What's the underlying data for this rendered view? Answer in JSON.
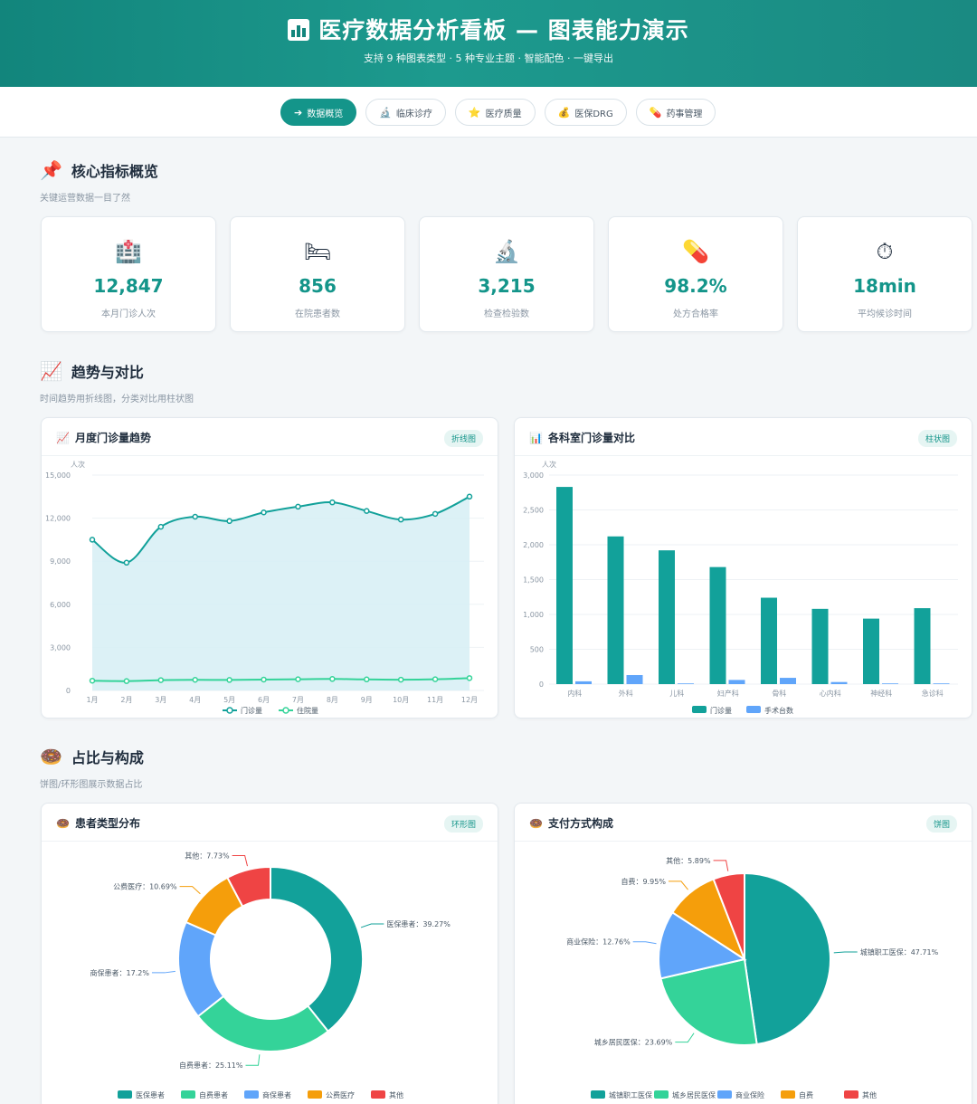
{
  "header": {
    "title": "医疗数据分析看板 — 图表能力演示",
    "subtitle": "支持 9 种图表类型 · 5 种专业主题 · 智能配色 · 一键导出"
  },
  "tabs": [
    {
      "icon": "➔",
      "label": "数据概览",
      "active": true
    },
    {
      "icon": "🔬",
      "label": "临床诊疗"
    },
    {
      "icon": "⭐",
      "label": "医疗质量"
    },
    {
      "icon": "💰",
      "label": "医保DRG"
    },
    {
      "icon": "💊",
      "label": "药事管理"
    }
  ],
  "overview": {
    "title": "核心指标概览",
    "subtitle": "关键运营数据一目了然",
    "kpis": [
      {
        "icon": "🏥",
        "value": "12,847",
        "label": "本月门诊人次"
      },
      {
        "icon": "🛏",
        "value": "856",
        "label": "在院患者数"
      },
      {
        "icon": "🔬",
        "value": "3,215",
        "label": "检查检验数"
      },
      {
        "icon": "💊",
        "value": "98.2%",
        "label": "处方合格率"
      },
      {
        "icon": "⏱",
        "value": "18min",
        "label": "平均候诊时间"
      }
    ]
  },
  "trend": {
    "title": "趋势与对比",
    "subtitle": "时间趋势用折线图，分类对比用柱状图",
    "line_card": {
      "title": "月度门诊量趋势",
      "badge": "折线图"
    },
    "bar_card": {
      "title": "各科室门诊量对比",
      "badge": "柱状图"
    }
  },
  "composition": {
    "title": "占比与构成",
    "subtitle": "饼图/环形图展示数据占比",
    "donut_card": {
      "title": "患者类型分布",
      "badge": "环形图"
    },
    "pie_card": {
      "title": "支付方式构成",
      "badge": "饼图"
    }
  },
  "colors": {
    "teal": "#12a19a",
    "green": "#34d399",
    "blue": "#60a5fa",
    "orange": "#f59e0b",
    "red": "#ef4444"
  },
  "chart_data": [
    {
      "type": "line",
      "ylabel": "人次",
      "x": [
        "1月",
        "2月",
        "3月",
        "4月",
        "5月",
        "6月",
        "7月",
        "8月",
        "9月",
        "10月",
        "11月",
        "12月"
      ],
      "series": [
        {
          "name": "门诊量",
          "values": [
            10500,
            8900,
            11400,
            12100,
            11800,
            12400,
            12800,
            13100,
            12500,
            11900,
            12300,
            13500
          ]
        },
        {
          "name": "住院量",
          "values": [
            680,
            650,
            720,
            740,
            730,
            760,
            780,
            800,
            770,
            750,
            780,
            860
          ]
        }
      ],
      "ylim": [
        0,
        15000
      ],
      "yticks": [
        "0",
        "3,000",
        "6,000",
        "9,000",
        "12,000",
        "15,000"
      ],
      "legend": "bottom"
    },
    {
      "type": "bar",
      "ylabel": "人次",
      "categories": [
        "内科",
        "外科",
        "儿科",
        "妇产科",
        "骨科",
        "心内科",
        "神经科",
        "急诊科"
      ],
      "series": [
        {
          "name": "门诊量",
          "values": [
            2830,
            2120,
            1920,
            1680,
            1240,
            1080,
            940,
            1090
          ]
        },
        {
          "name": "手术台数",
          "values": [
            40,
            130,
            10,
            60,
            90,
            30,
            10,
            10
          ]
        }
      ],
      "ylim": [
        0,
        3000
      ],
      "yticks": [
        "0",
        "500",
        "1,000",
        "1,500",
        "2,000",
        "2,500",
        "3,000"
      ],
      "legend": "bottom"
    },
    {
      "type": "pie",
      "variant": "donut",
      "labels": [
        "医保患者",
        "自费患者",
        "商保患者",
        "公费医疗",
        "其他"
      ],
      "values": [
        39.27,
        25.11,
        17.2,
        10.69,
        7.73
      ],
      "label_texts": [
        "医保患者：39.27%",
        "自费患者：25.11%",
        "商保患者：17.2%",
        "公费医疗：10.69%",
        "其他：7.73%"
      ],
      "legend": "bottom"
    },
    {
      "type": "pie",
      "labels": [
        "城镇职工医保",
        "城乡居民医保",
        "商业保险",
        "自费",
        "其他"
      ],
      "values": [
        47.71,
        23.69,
        12.76,
        9.95,
        5.89
      ],
      "label_texts": [
        "城镇职工医保：47.71%",
        "城乡居民医保：23.69%",
        "商业保险：12.76%",
        "自费：9.95%",
        "其他：5.89%"
      ],
      "legend": "bottom"
    }
  ]
}
